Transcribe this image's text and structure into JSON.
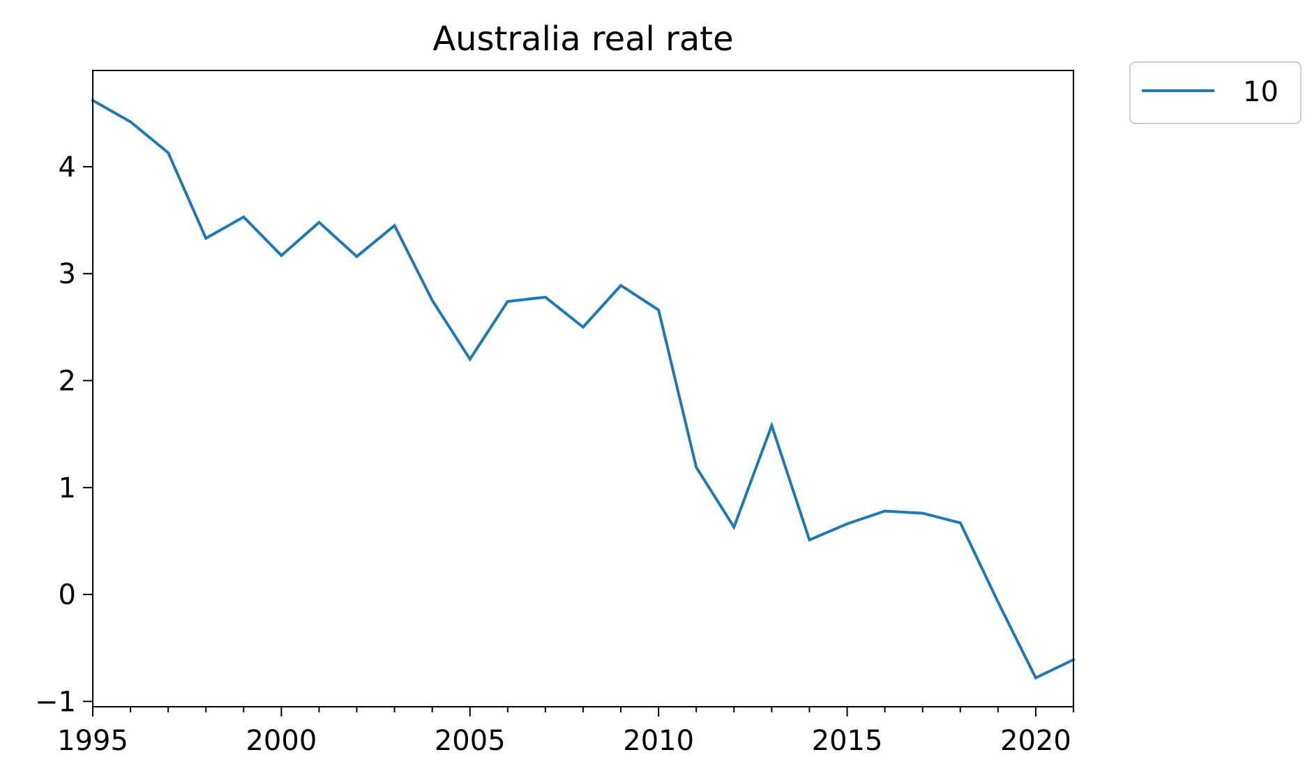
{
  "chart_data": {
    "type": "line",
    "title": "Australia real rate",
    "xlabel": "",
    "ylabel": "",
    "xlim": [
      1995,
      2021
    ],
    "ylim": [
      -1.05,
      4.9
    ],
    "x_ticks": [
      1995,
      2000,
      2005,
      2010,
      2015,
      2020
    ],
    "x_tick_labels": [
      "1995",
      "2000",
      "2005",
      "2010",
      "2015",
      "2020"
    ],
    "x_minor_step": 1,
    "y_ticks": [
      -1,
      0,
      1,
      2,
      3,
      4
    ],
    "y_tick_labels": [
      "−1",
      "0",
      "1",
      "2",
      "3",
      "4"
    ],
    "grid": false,
    "legend_position": "outside-top-right",
    "series": [
      {
        "name": "10",
        "color": "#1f77b4",
        "x": [
          1995,
          1996,
          1997,
          1998,
          1999,
          2000,
          2001,
          2002,
          2003,
          2004,
          2005,
          2006,
          2007,
          2008,
          2009,
          2010,
          2011,
          2012,
          2013,
          2014,
          2015,
          2016,
          2017,
          2018,
          2019,
          2020,
          2021
        ],
        "y": [
          4.62,
          4.42,
          4.13,
          3.33,
          3.53,
          3.17,
          3.48,
          3.16,
          3.45,
          2.75,
          2.2,
          2.74,
          2.78,
          2.5,
          2.89,
          2.66,
          1.19,
          0.63,
          1.58,
          0.51,
          0.66,
          0.78,
          0.76,
          0.67,
          -0.07,
          -0.78,
          -0.61
        ]
      }
    ]
  }
}
